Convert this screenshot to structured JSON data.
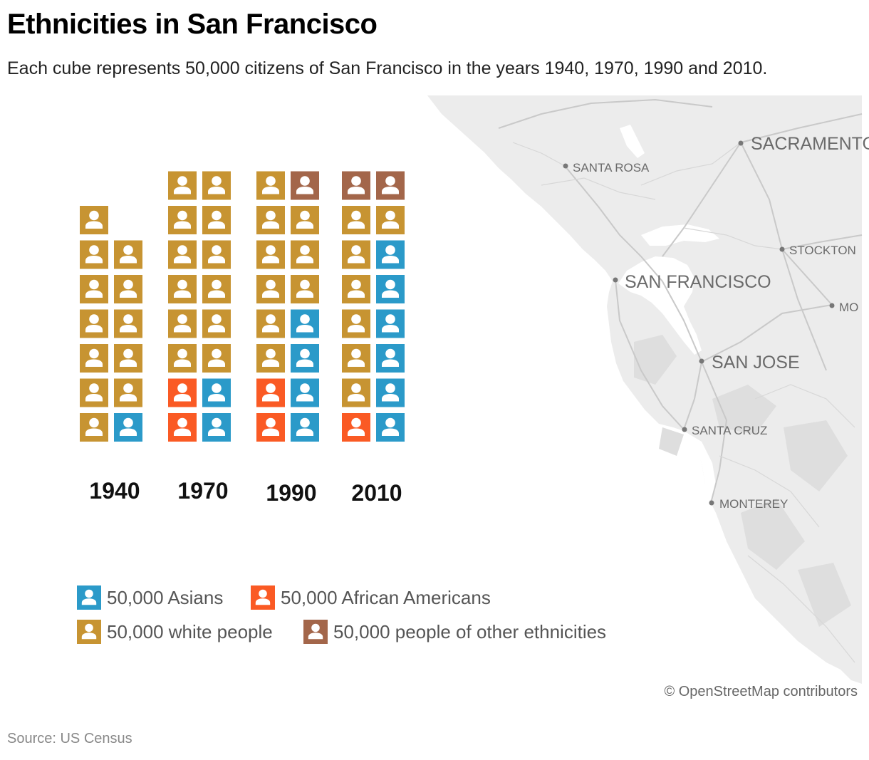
{
  "header": {
    "title": "Ethnicities in San Francisco",
    "subtitle": "Each cube represents 50,000 citizens of San Francisco in the years 1940, 1970, 1990 and 2010."
  },
  "colors": {
    "asian": "#2b9ac9",
    "african_american": "#fa5a24",
    "white": "#c79432",
    "other": "#a3664a",
    "map_land": "#ececec",
    "map_water": "#ffffff"
  },
  "map": {
    "cities": [
      {
        "name": "SACRAMENTO",
        "size": "large"
      },
      {
        "name": "SANTA ROSA",
        "size": "small"
      },
      {
        "name": "STOCKTON",
        "size": "small"
      },
      {
        "name": "SAN FRANCISCO",
        "size": "large"
      },
      {
        "name": "MO",
        "size": "small"
      },
      {
        "name": "SAN JOSE",
        "size": "large"
      },
      {
        "name": "SANTA CRUZ",
        "size": "small"
      },
      {
        "name": "MONTEREY",
        "size": "small"
      }
    ],
    "attribution": "© OpenStreetMap contributors"
  },
  "chart_data": {
    "type": "pictogram",
    "unit_value": 50000,
    "unit_label": "citizens per cube",
    "categories": [
      "1940",
      "1970",
      "1990",
      "2010"
    ],
    "series": [
      {
        "name": "50,000 Asians",
        "key": "asian",
        "values": [
          1,
          2,
          4,
          6
        ]
      },
      {
        "name": "50,000 African Americans",
        "key": "african_american",
        "values": [
          0,
          2,
          2,
          1
        ]
      },
      {
        "name": "50,000 white people",
        "key": "white",
        "values": [
          12,
          12,
          9,
          7
        ]
      },
      {
        "name": "50,000 people of other ethnicities",
        "key": "other",
        "values": [
          0,
          0,
          1,
          2
        ]
      }
    ],
    "legend": [
      "50,000 Asians",
      "50,000 African Americans",
      "50,000 white people",
      "50,000 people of other ethnicities"
    ]
  },
  "footer": {
    "source": "Source: US Census"
  }
}
